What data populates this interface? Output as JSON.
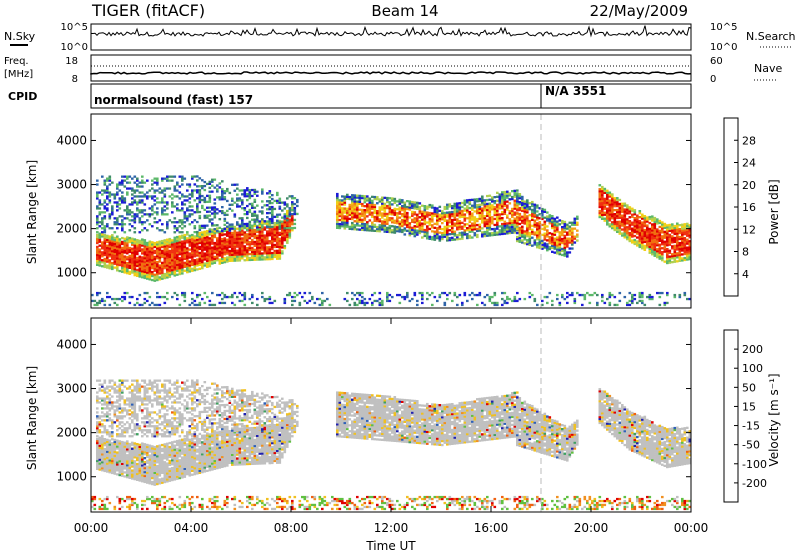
{
  "header": {
    "station": "TIGER (fitACF)",
    "beam": "Beam 14",
    "date": "22/May/2009"
  },
  "panels": {
    "nsky": {
      "label": "N.Sky",
      "ticks": [
        "10^5",
        "10^0"
      ]
    },
    "nsearch": {
      "label": "N.Search",
      "ticks": [
        "10^5",
        "10^0"
      ]
    },
    "freq": {
      "label_1": "Freq.",
      "label_2": "[MHz]",
      "ticks": [
        "18",
        "8"
      ]
    },
    "nave": {
      "label": "Nave",
      "ticks": [
        "60",
        "0"
      ]
    },
    "cpid": {
      "label": "CPID",
      "segments": [
        {
          "start": "00:00",
          "text": "normalsound (fast) 157"
        },
        {
          "start": "18:00",
          "text": "N/A 3551"
        }
      ]
    }
  },
  "chart_data": [
    {
      "type": "heatmap",
      "name": "power",
      "xlabel": "",
      "ylabel": "Slant Range [km]",
      "x_range": [
        "00:00",
        "24:00"
      ],
      "ylim": [
        200,
        4600
      ],
      "yticks": [
        1000,
        2000,
        3000,
        4000
      ],
      "colorbar": {
        "label": "Power [dB]",
        "ticks": [
          4,
          8,
          12,
          16,
          20,
          24,
          28
        ],
        "range": [
          0,
          32
        ],
        "colors": [
          "#1b1bd6",
          "#2e64a8",
          "#3f8a6a",
          "#5cb86a",
          "#b0d050",
          "#f0d018",
          "#f5a018",
          "#f07010",
          "#f03010",
          "#e00000"
        ]
      },
      "scatter_layers": [
        {
          "x": [
            0.2,
            8.0
          ],
          "profile": [
            [
              0.2,
              1160,
              1880
            ],
            [
              2.5,
              800,
              1700
            ],
            [
              5.5,
              1250,
              2050
            ],
            [
              7.5,
              1300,
              2200
            ],
            [
              8.0,
              1900,
              2500
            ]
          ],
          "density": 0.9,
          "scheme": "strong"
        },
        {
          "x": [
            0.2,
            8.2
          ],
          "profile": [
            [
              0.2,
              1900,
              3200
            ],
            [
              4.0,
              1900,
              3200
            ],
            [
              8.2,
              2000,
              2700
            ]
          ],
          "density": 0.35,
          "scheme": "weak"
        },
        {
          "x": [
            9.8,
            17.0
          ],
          "profile": [
            [
              9.8,
              2000,
              2800
            ],
            [
              12.0,
              1900,
              2700
            ],
            [
              14.0,
              1700,
              2500
            ],
            [
              17.0,
              1900,
              2900
            ]
          ],
          "density": 0.75,
          "scheme": "mixed"
        },
        {
          "x": [
            17.0,
            19.5
          ],
          "profile": [
            [
              17.0,
              1700,
              2800
            ],
            [
              19.0,
              1350,
              2100
            ],
            [
              19.5,
              1800,
              2300
            ]
          ],
          "density": 0.75,
          "scheme": "mixed"
        },
        {
          "x": [
            20.3,
            24.0
          ],
          "profile": [
            [
              20.3,
              2200,
              3000
            ],
            [
              21.5,
              1700,
              2500
            ],
            [
              23.0,
              1200,
              2100
            ],
            [
              24.0,
              1300,
              2100
            ]
          ],
          "density": 0.85,
          "scheme": "strong"
        },
        {
          "x": [
            0.0,
            24.0
          ],
          "profile": [
            [
              0.0,
              250,
              550
            ],
            [
              24.0,
              250,
              550
            ]
          ],
          "density": 0.25,
          "scheme": "weak"
        }
      ]
    },
    {
      "type": "heatmap",
      "name": "velocity",
      "xlabel": "Time UT",
      "ylabel": "Slant Range [km]",
      "x_range": [
        "00:00",
        "24:00"
      ],
      "xticks": [
        "00:00",
        "04:00",
        "08:00",
        "12:00",
        "16:00",
        "20:00",
        "00:00"
      ],
      "ylim": [
        200,
        4600
      ],
      "yticks": [
        1000,
        2000,
        3000,
        4000
      ],
      "colorbar": {
        "label": "Velocity [m s⁻¹]",
        "ticks": [
          "200",
          "100",
          "50",
          "15",
          "-15",
          "-50",
          "-100",
          "-200"
        ],
        "colors": [
          "#2020b0",
          "#2c5fb8",
          "#3fa060",
          "#60c040",
          "#c0c0c0",
          "#f0c020",
          "#f09020",
          "#f06010",
          "#e00000"
        ]
      },
      "scatter_layers": [
        {
          "x": [
            0.2,
            8.0
          ],
          "profile": [
            [
              0.2,
              1160,
              1880
            ],
            [
              2.5,
              800,
              1700
            ],
            [
              5.5,
              1250,
              2050
            ],
            [
              7.5,
              1300,
              2200
            ],
            [
              8.0,
              1900,
              2500
            ]
          ],
          "density": 0.95,
          "scheme": "ground"
        },
        {
          "x": [
            0.2,
            8.2
          ],
          "profile": [
            [
              0.2,
              1900,
              3200
            ],
            [
              4.0,
              1900,
              3200
            ],
            [
              8.2,
              2000,
              2700
            ]
          ],
          "density": 0.55,
          "scheme": "ground"
        },
        {
          "x": [
            9.8,
            17.0
          ],
          "profile": [
            [
              9.8,
              1900,
              2900
            ],
            [
              12.0,
              1800,
              2800
            ],
            [
              14.0,
              1700,
              2600
            ],
            [
              17.0,
              1900,
              2900
            ]
          ],
          "density": 0.9,
          "scheme": "ground"
        },
        {
          "x": [
            17.0,
            19.5
          ],
          "profile": [
            [
              17.0,
              1700,
              2800
            ],
            [
              19.0,
              1350,
              2100
            ],
            [
              19.5,
              1800,
              2300
            ]
          ],
          "density": 0.9,
          "scheme": "ground"
        },
        {
          "x": [
            20.3,
            24.0
          ],
          "profile": [
            [
              20.3,
              2200,
              3000
            ],
            [
              21.5,
              1600,
              2500
            ],
            [
              23.0,
              1200,
              2100
            ],
            [
              24.0,
              1300,
              2100
            ]
          ],
          "density": 0.9,
          "scheme": "ground"
        },
        {
          "x": [
            0.0,
            24.0
          ],
          "profile": [
            [
              0.0,
              250,
              550
            ],
            [
              24.0,
              250,
              550
            ]
          ],
          "density": 0.35,
          "scheme": "warm"
        }
      ]
    }
  ]
}
